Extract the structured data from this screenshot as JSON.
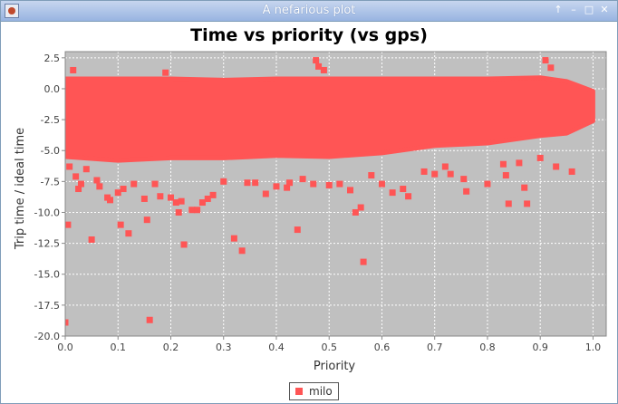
{
  "window": {
    "title": "A nefarious plot",
    "buttons": {
      "up": "↑",
      "minimize": "–",
      "maximize": "□",
      "close": "✕"
    }
  },
  "colors": {
    "titlebar": "#98b4e1",
    "plot_background": "#c0c0c0",
    "grid": "#ffffff",
    "series": "#ff5555",
    "axis": "#888888"
  },
  "chart_data": {
    "type": "scatter",
    "title": "Time vs priority (vs gps)",
    "xlabel": "Priority",
    "ylabel": "Trip time / ideal time",
    "xlim": [
      0.0,
      1.025
    ],
    "ylim": [
      -20.0,
      3.0
    ],
    "xticks": [
      0.0,
      0.1,
      0.2,
      0.3,
      0.4,
      0.5,
      0.6,
      0.7,
      0.8,
      0.9,
      1.0
    ],
    "xtick_labels": [
      "0.0",
      "0.1",
      "0.2",
      "0.3",
      "0.4",
      "0.5",
      "0.6",
      "0.7",
      "0.8",
      "0.9",
      "1.0"
    ],
    "yticks": [
      2.5,
      0.0,
      -2.5,
      -5.0,
      -7.5,
      -10.0,
      -12.5,
      -15.0,
      -17.5,
      -20.0
    ],
    "ytick_labels": [
      "2.5",
      "0.0",
      "-2.5",
      "-5.0",
      "-7.5",
      "-10.0",
      "-12.5",
      "-15.0",
      "-17.5",
      "-20.0"
    ],
    "grid": true,
    "legend_position": "bottom-center",
    "series": [
      {
        "name": "milo",
        "dense_band": [
          [
            0.0,
            0.8,
            -5.5
          ],
          [
            0.1,
            0.8,
            -5.8
          ],
          [
            0.2,
            0.8,
            -5.6
          ],
          [
            0.3,
            0.7,
            -5.6
          ],
          [
            0.4,
            0.8,
            -5.4
          ],
          [
            0.5,
            0.8,
            -5.5
          ],
          [
            0.6,
            0.8,
            -5.2
          ],
          [
            0.7,
            0.8,
            -4.6
          ],
          [
            0.8,
            0.8,
            -4.4
          ],
          [
            0.9,
            0.9,
            -3.8
          ],
          [
            0.95,
            0.6,
            -3.6
          ],
          [
            1.0,
            -0.2,
            -2.6
          ]
        ],
        "points": [
          [
            0.0,
            -18.9
          ],
          [
            0.005,
            -11.0
          ],
          [
            0.008,
            -6.3
          ],
          [
            0.015,
            1.5
          ],
          [
            0.02,
            -7.1
          ],
          [
            0.025,
            -8.1
          ],
          [
            0.03,
            -7.7
          ],
          [
            0.04,
            -6.5
          ],
          [
            0.05,
            -12.2
          ],
          [
            0.06,
            -7.4
          ],
          [
            0.065,
            -7.9
          ],
          [
            0.08,
            -8.8
          ],
          [
            0.085,
            -9.0
          ],
          [
            0.1,
            -8.4
          ],
          [
            0.105,
            -11.0
          ],
          [
            0.11,
            -8.1
          ],
          [
            0.12,
            -11.7
          ],
          [
            0.13,
            -7.7
          ],
          [
            0.15,
            -8.9
          ],
          [
            0.155,
            -10.6
          ],
          [
            0.16,
            -18.7
          ],
          [
            0.17,
            -7.7
          ],
          [
            0.18,
            -8.7
          ],
          [
            0.19,
            1.3
          ],
          [
            0.2,
            -8.8
          ],
          [
            0.21,
            -9.2
          ],
          [
            0.215,
            -10.0
          ],
          [
            0.22,
            -9.1
          ],
          [
            0.225,
            -12.6
          ],
          [
            0.24,
            -9.8
          ],
          [
            0.25,
            -9.8
          ],
          [
            0.26,
            -9.2
          ],
          [
            0.27,
            -8.9
          ],
          [
            0.28,
            -8.6
          ],
          [
            0.3,
            -7.5
          ],
          [
            0.32,
            -12.1
          ],
          [
            0.335,
            -13.1
          ],
          [
            0.345,
            -7.6
          ],
          [
            0.36,
            -7.6
          ],
          [
            0.38,
            -8.5
          ],
          [
            0.4,
            -7.9
          ],
          [
            0.42,
            -8.0
          ],
          [
            0.425,
            -7.6
          ],
          [
            0.44,
            -11.4
          ],
          [
            0.45,
            -7.3
          ],
          [
            0.47,
            -7.7
          ],
          [
            0.475,
            2.3
          ],
          [
            0.48,
            1.8
          ],
          [
            0.49,
            1.5
          ],
          [
            0.5,
            -7.8
          ],
          [
            0.52,
            -7.7
          ],
          [
            0.54,
            -8.2
          ],
          [
            0.55,
            -10.0
          ],
          [
            0.56,
            -9.6
          ],
          [
            0.565,
            -14.0
          ],
          [
            0.58,
            -7.0
          ],
          [
            0.6,
            -7.7
          ],
          [
            0.62,
            -8.4
          ],
          [
            0.64,
            -8.1
          ],
          [
            0.65,
            -8.7
          ],
          [
            0.68,
            -6.7
          ],
          [
            0.7,
            -6.9
          ],
          [
            0.72,
            -6.3
          ],
          [
            0.73,
            -6.9
          ],
          [
            0.755,
            -7.3
          ],
          [
            0.76,
            -8.3
          ],
          [
            0.8,
            -7.7
          ],
          [
            0.83,
            -6.1
          ],
          [
            0.835,
            -7.0
          ],
          [
            0.84,
            -9.3
          ],
          [
            0.86,
            -6.0
          ],
          [
            0.87,
            -8.0
          ],
          [
            0.875,
            -9.3
          ],
          [
            0.9,
            -5.6
          ],
          [
            0.91,
            2.3
          ],
          [
            0.92,
            1.7
          ],
          [
            0.93,
            -6.3
          ],
          [
            0.96,
            -6.7
          ]
        ]
      }
    ]
  }
}
